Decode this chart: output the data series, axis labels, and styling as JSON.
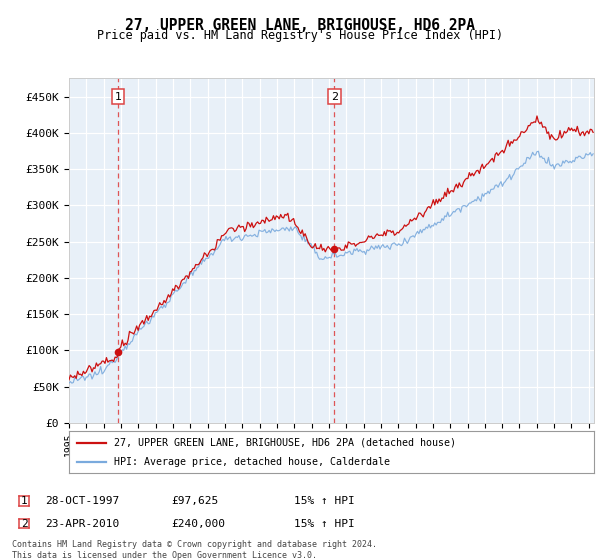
{
  "title": "27, UPPER GREEN LANE, BRIGHOUSE, HD6 2PA",
  "subtitle": "Price paid vs. HM Land Registry's House Price Index (HPI)",
  "ylabel_ticks": [
    "£0",
    "£50K",
    "£100K",
    "£150K",
    "£200K",
    "£250K",
    "£300K",
    "£350K",
    "£400K",
    "£450K"
  ],
  "ytick_values": [
    0,
    50000,
    100000,
    150000,
    200000,
    250000,
    300000,
    350000,
    400000,
    450000
  ],
  "ylim": [
    0,
    475000
  ],
  "xlim_start": 1995.2,
  "xlim_end": 2025.3,
  "plot_bg_color": "#e8f0f8",
  "grid_color": "#ffffff",
  "hpi_line_color": "#7aaadd",
  "price_line_color": "#cc1111",
  "vline_color": "#dd4444",
  "point1_x": 1997.83,
  "point1_y": 97625,
  "point2_x": 2010.31,
  "point2_y": 240000,
  "legend_label1": "27, UPPER GREEN LANE, BRIGHOUSE, HD6 2PA (detached house)",
  "legend_label2": "HPI: Average price, detached house, Calderdale",
  "annotation1_date": "28-OCT-1997",
  "annotation1_price": "£97,625",
  "annotation1_hpi": "15% ↑ HPI",
  "annotation2_date": "23-APR-2010",
  "annotation2_price": "£240,000",
  "annotation2_hpi": "15% ↑ HPI",
  "footer": "Contains HM Land Registry data © Crown copyright and database right 2024.\nThis data is licensed under the Open Government Licence v3.0."
}
